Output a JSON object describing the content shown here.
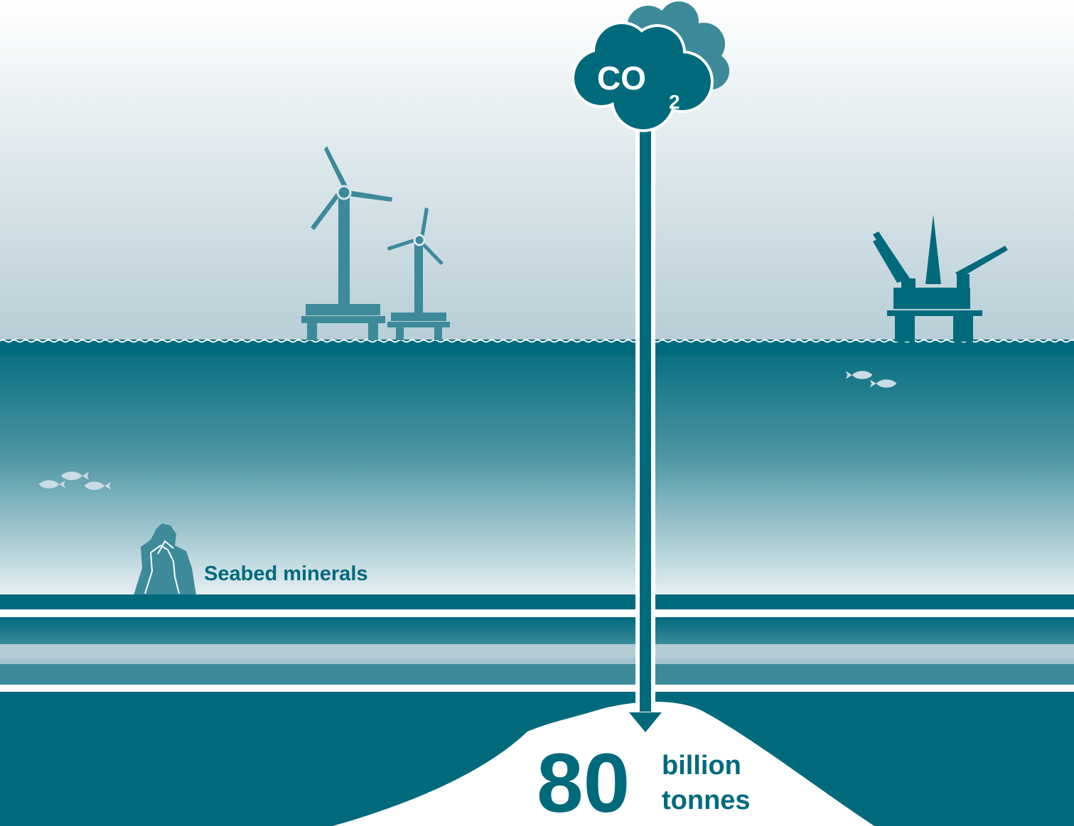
{
  "colors": {
    "dark_teal": "#006a7d",
    "mid_teal": "#3c8a9a",
    "light_band": "#b3ccd6",
    "sky_top": "#ffffff",
    "sky_bottom": "#b8ced6",
    "fish": "#c9dde4",
    "white": "#ffffff"
  },
  "icons": {
    "cloud": "co2-cloud-icon",
    "wind_turbine": "wind-turbine-icon",
    "oil_platform": "oil-platform-icon",
    "fish": "fish-icon",
    "minerals": "seabed-minerals-icon",
    "arrow": "arrow-down-icon"
  },
  "cloud": {
    "text": "CO",
    "subscript": "2"
  },
  "seabed": {
    "label": "Seabed minerals"
  },
  "storage": {
    "value": "80",
    "unit_line1": "billion",
    "unit_line2": "tonnes"
  }
}
